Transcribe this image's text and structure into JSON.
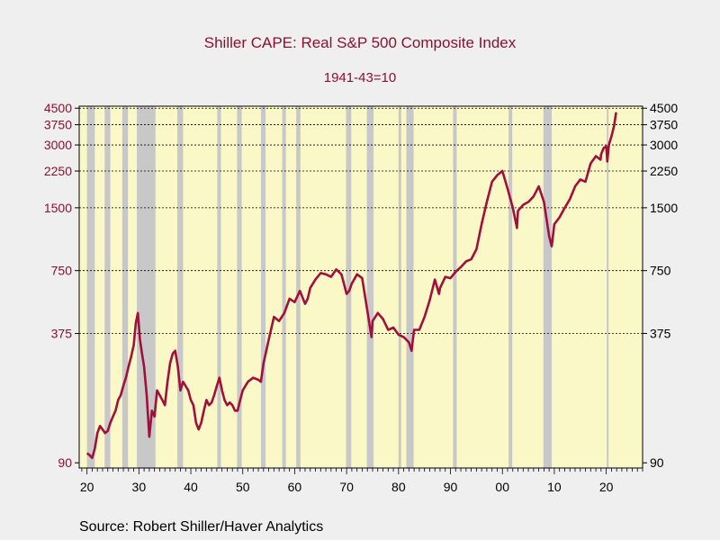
{
  "chart_data": {
    "type": "line",
    "title": "Shiller CAPE: Real S&P 500 Composite Index",
    "subtitle": "1941-43=10",
    "source": "Source:  Robert Shiller/Haver Analytics",
    "y_scale": "log",
    "ylim": [
      85,
      4600
    ],
    "xlim": [
      1918.5,
      2027
    ],
    "y_ticks": [
      90,
      375,
      750,
      1500,
      2250,
      3000,
      3750,
      4500
    ],
    "y_tick_labels": [
      "90",
      "375",
      "750",
      "1500",
      "2250",
      "3000",
      "3750",
      "4500"
    ],
    "x_ticks": [
      1920,
      1930,
      1940,
      1950,
      1960,
      1970,
      1980,
      1990,
      2000,
      2010,
      2020
    ],
    "x_tick_labels": [
      "20",
      "30",
      "40",
      "50",
      "60",
      "70",
      "80",
      "90",
      "00",
      "10",
      "20"
    ],
    "grid": "horizontal dashed",
    "colors": {
      "line": "#a0103a",
      "plot_bg": "#fbf8c7",
      "recession": "#c8c8c8",
      "axis_text_left": "#8b1030"
    },
    "recessions": [
      [
        1920.0,
        1921.5
      ],
      [
        1923.4,
        1924.5
      ],
      [
        1926.8,
        1927.9
      ],
      [
        1929.6,
        1933.2
      ],
      [
        1937.4,
        1938.5
      ],
      [
        1945.1,
        1945.8
      ],
      [
        1948.9,
        1949.8
      ],
      [
        1953.5,
        1954.4
      ],
      [
        1957.6,
        1958.3
      ],
      [
        1960.3,
        1961.1
      ],
      [
        1969.9,
        1970.9
      ],
      [
        1973.9,
        1975.2
      ],
      [
        1980.0,
        1980.5
      ],
      [
        1981.5,
        1982.9
      ],
      [
        1990.5,
        1991.2
      ],
      [
        2001.2,
        2001.9
      ],
      [
        2007.9,
        2009.5
      ],
      [
        2020.1,
        2020.4
      ]
    ],
    "series": [
      {
        "x": [
          1920.0,
          1920.5,
          1921.0,
          1921.5,
          1922.0,
          1922.5,
          1923.0,
          1923.5,
          1924.0,
          1924.5,
          1925.0,
          1925.5,
          1926.0,
          1926.5,
          1927.0,
          1927.5,
          1928.0,
          1928.5,
          1929.0,
          1929.4,
          1929.8,
          1930.2,
          1930.6,
          1931.0,
          1931.5,
          1932.0,
          1932.5,
          1933.0,
          1933.5,
          1934.0,
          1934.5,
          1935.0,
          1935.5,
          1936.0,
          1936.5,
          1937.0,
          1937.5,
          1938.0,
          1938.5,
          1939.0,
          1939.5,
          1940.0,
          1940.5,
          1941.0,
          1941.5,
          1942.0,
          1942.5,
          1943.0,
          1943.5,
          1944.0,
          1944.5,
          1945.0,
          1945.5,
          1946.0,
          1946.5,
          1947.0,
          1947.5,
          1948.0,
          1948.5,
          1949.0,
          1949.5,
          1950.0,
          1951.0,
          1952.0,
          1953.0,
          1953.5,
          1954.0,
          1955.0,
          1956.0,
          1957.0,
          1958.0,
          1959.0,
          1960.0,
          1961.0,
          1962.0,
          1962.5,
          1963.0,
          1964.0,
          1965.0,
          1966.0,
          1967.0,
          1968.0,
          1969.0,
          1970.0,
          1970.5,
          1971.0,
          1972.0,
          1973.0,
          1974.0,
          1974.8,
          1975.0,
          1976.0,
          1977.0,
          1978.0,
          1979.0,
          1980.0,
          1981.0,
          1982.0,
          1982.5,
          1983.0,
          1984.0,
          1985.0,
          1986.0,
          1987.0,
          1987.8,
          1988.0,
          1989.0,
          1990.0,
          1991.0,
          1992.0,
          1993.0,
          1994.0,
          1995.0,
          1996.0,
          1997.0,
          1998.0,
          1999.0,
          2000.0,
          2001.0,
          2002.0,
          2002.8,
          2003.0,
          2004.0,
          2005.0,
          2006.0,
          2007.0,
          2008.0,
          2009.0,
          2009.5,
          2010.0,
          2011.0,
          2012.0,
          2013.0,
          2014.0,
          2015.0,
          2016.0,
          2017.0,
          2018.0,
          2018.9,
          2019.0,
          2019.5,
          2020.0,
          2020.2,
          2020.5,
          2021.0,
          2021.5,
          2021.9
        ],
        "y": [
          100,
          98,
          95,
          105,
          125,
          135,
          130,
          125,
          128,
          140,
          150,
          160,
          180,
          190,
          210,
          230,
          260,
          290,
          330,
          420,
          470,
          350,
          300,
          260,
          190,
          120,
          160,
          150,
          200,
          190,
          180,
          170,
          220,
          270,
          300,
          310,
          260,
          200,
          220,
          210,
          200,
          180,
          170,
          140,
          130,
          140,
          160,
          180,
          170,
          175,
          190,
          210,
          230,
          200,
          180,
          170,
          175,
          170,
          160,
          160,
          180,
          200,
          220,
          230,
          225,
          220,
          270,
          350,
          450,
          430,
          470,
          550,
          530,
          600,
          520,
          550,
          620,
          680,
          730,
          720,
          700,
          760,
          720,
          580,
          600,
          650,
          720,
          690,
          480,
          360,
          430,
          470,
          440,
          390,
          400,
          370,
          360,
          340,
          310,
          390,
          390,
          450,
          540,
          680,
          580,
          620,
          700,
          690,
          740,
          780,
          830,
          850,
          950,
          1250,
          1600,
          2000,
          2150,
          2250,
          1850,
          1500,
          1200,
          1450,
          1550,
          1600,
          1700,
          1900,
          1600,
          1100,
          980,
          1250,
          1350,
          1500,
          1650,
          1900,
          2050,
          2000,
          2450,
          2650,
          2550,
          2700,
          2900,
          2950,
          2500,
          3000,
          3300,
          3700,
          4300
        ]
      }
    ]
  }
}
